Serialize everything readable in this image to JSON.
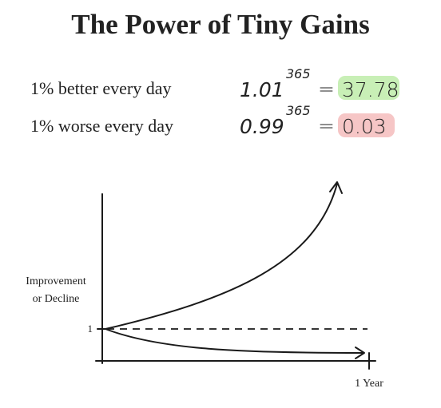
{
  "title": "The Power of Tiny Gains",
  "rows": [
    {
      "label": "1% better every day",
      "base": "1.01",
      "exponent": "365",
      "equals": "=",
      "result": "37.78"
    },
    {
      "label": "1% worse every day",
      "base": "0.99",
      "exponent": "365",
      "equals": "=",
      "result": "0.03"
    }
  ],
  "graph": {
    "y_label": [
      "Improvement",
      "or Decline"
    ],
    "y_tick": "1",
    "x_tick": "1 Year"
  }
}
